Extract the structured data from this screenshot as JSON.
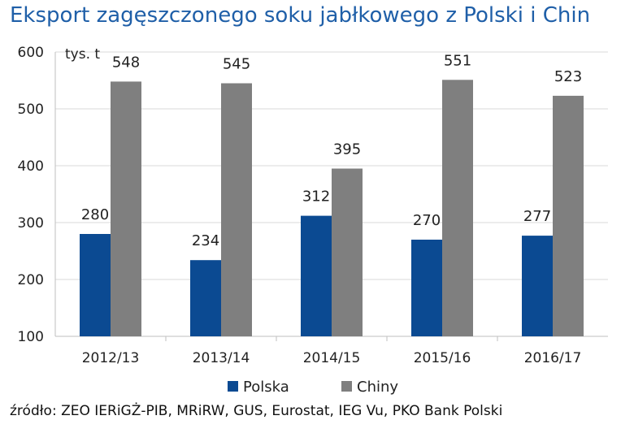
{
  "title": "Eksport zagęszczonego soku jabłkowego z Polski i Chin",
  "source": "źródło: ZEO IERiGŻ-PIB, MRiRW, GUS, Eurostat, IEG Vu, PKO Bank Polski",
  "colors": {
    "title": "#1f5fa8",
    "Polska": "#0b4a92",
    "Chiny": "#7f7f7f",
    "grid": "#d9d9d9",
    "axis": "#bfbfbf"
  },
  "chart_data": {
    "type": "bar",
    "title": "Eksport zagęszczonego soku jabłkowego z Polski i Chin",
    "ylabel": "tys. t",
    "xlabel": "",
    "categories": [
      "2012/13",
      "2013/14",
      "2014/15",
      "2015/16",
      "2016/17"
    ],
    "series": [
      {
        "name": "Polska",
        "values": [
          280,
          234,
          312,
          270,
          277
        ]
      },
      {
        "name": "Chiny",
        "values": [
          548,
          545,
          395,
          551,
          523
        ]
      }
    ],
    "ylim": [
      100,
      600
    ],
    "yticks": [
      100,
      200,
      300,
      400,
      500,
      600
    ],
    "grid": true,
    "legend": "bottom-center",
    "data_labels": true
  }
}
